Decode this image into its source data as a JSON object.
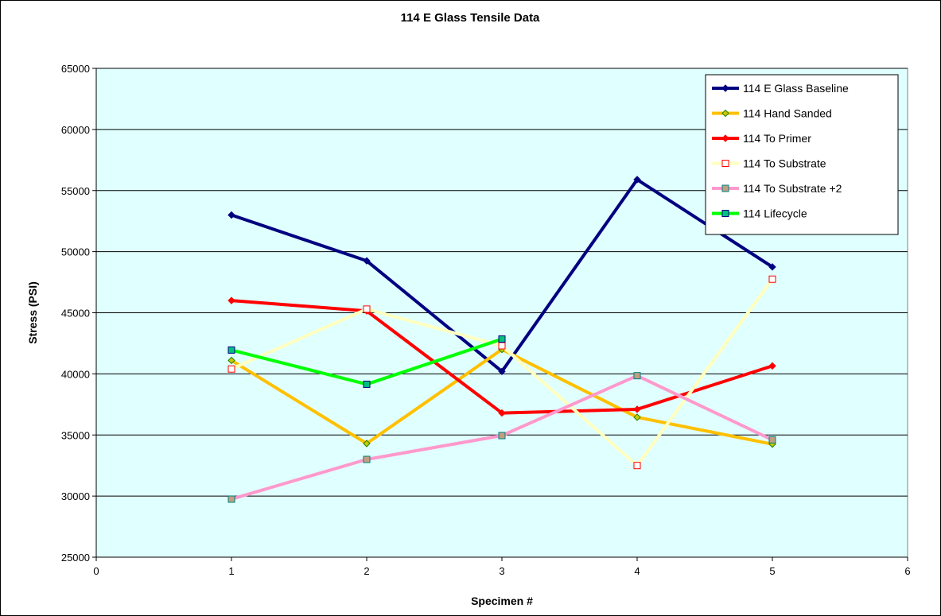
{
  "chart_data": {
    "type": "line",
    "title": "114 E Glass Tensile Data",
    "xlabel": "Specimen #",
    "ylabel": "Stress (PSI)",
    "xlim": [
      0,
      6
    ],
    "ylim": [
      25000,
      65000
    ],
    "x_ticks": [
      0,
      1,
      2,
      3,
      4,
      5,
      6
    ],
    "y_ticks": [
      25000,
      30000,
      35000,
      40000,
      45000,
      50000,
      55000,
      60000,
      65000
    ],
    "grid": "horizontal",
    "legend_position": "top-right",
    "plot_background": "#e0ffff",
    "series": [
      {
        "name": "114 E Glass Baseline",
        "color": "#000080",
        "marker": "diamond",
        "marker_fill": "#000080",
        "marker_stroke": "#000080",
        "x": [
          1,
          2,
          3,
          4,
          5
        ],
        "y": [
          53000,
          49250,
          40200,
          55900,
          48750
        ]
      },
      {
        "name": "114 Hand Sanded",
        "color": "#ffc000",
        "marker": "diamond",
        "marker_fill": "#c8c800",
        "marker_stroke": "#208000",
        "x": [
          1,
          2,
          3,
          4,
          5
        ],
        "y": [
          41100,
          34300,
          42000,
          36450,
          34250
        ]
      },
      {
        "name": "114 To Primer",
        "color": "#ff0000",
        "marker": "diamond",
        "marker_fill": "#ff0000",
        "marker_stroke": "#ff0000",
        "x": [
          1,
          2,
          3,
          4,
          5
        ],
        "y": [
          46000,
          45150,
          36800,
          37100,
          40650
        ]
      },
      {
        "name": "114 To Substrate",
        "color": "#ffffc0",
        "marker": "square",
        "marker_fill": "#ffffff",
        "marker_stroke": "#ff0000",
        "x": [
          1,
          2,
          3,
          4,
          5
        ],
        "y": [
          40400,
          45300,
          42300,
          32500,
          47750
        ]
      },
      {
        "name": "114 To Substrate +2",
        "color": "#ff99cc",
        "marker": "square",
        "marker_fill": "#c0a080",
        "marker_stroke": "#008080",
        "x": [
          1,
          2,
          3,
          4,
          5
        ],
        "y": [
          29750,
          33000,
          34950,
          39850,
          34600
        ]
      },
      {
        "name": "114 Lifecycle",
        "color": "#00ff00",
        "marker": "square",
        "marker_fill": "#00c080",
        "marker_stroke": "#000080",
        "x": [
          1,
          2,
          3
        ],
        "y": [
          41950,
          39150,
          42850
        ]
      }
    ]
  }
}
